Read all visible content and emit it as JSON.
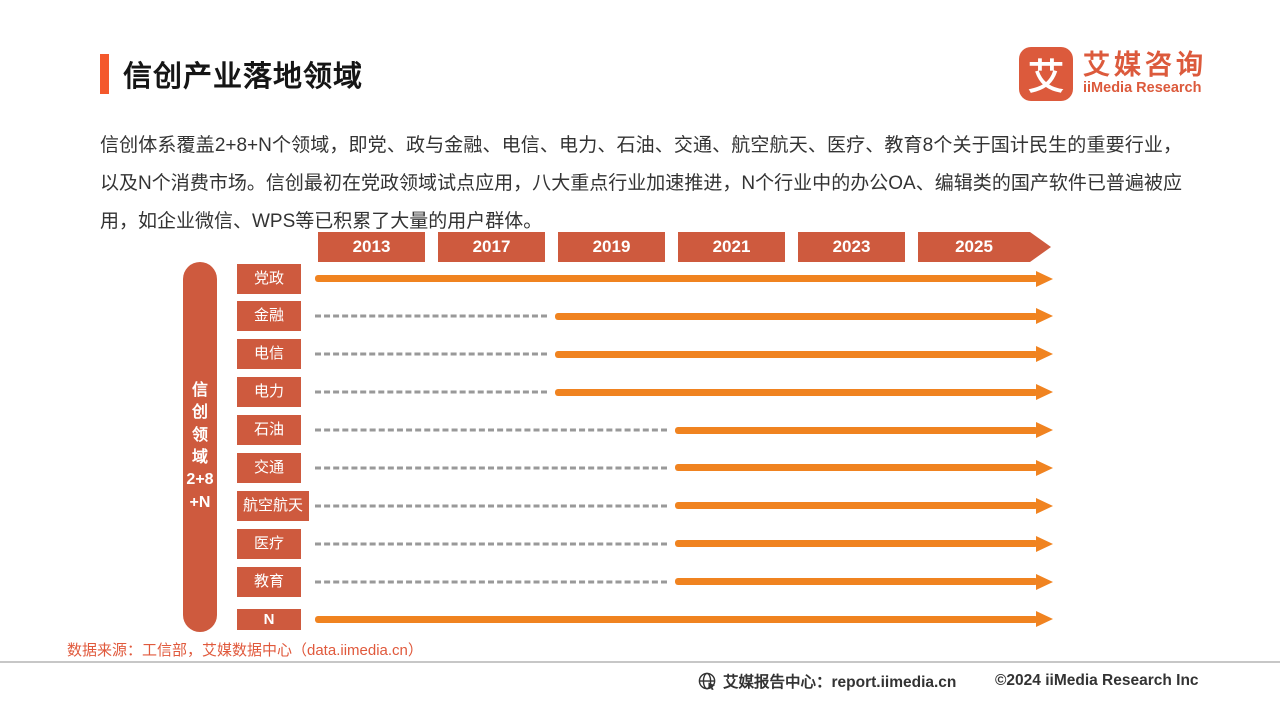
{
  "header": {
    "title": "信创产业落地领域"
  },
  "logo": {
    "mark_char": "艾",
    "name_cn": "艾媒咨询",
    "name_en": "iiMedia Research",
    "color": "#dc5a3c"
  },
  "intro_text": "信创体系覆盖2+8+N个领域，即党、政与金融、电信、电力、石油、交通、航空航天、医疗、教育8个关于国计民生的重要行业，以及N个消费市场。信创最初在党政领域试点应用，八大重点行业加速推进，N个行业中的办公OA、编辑类的国产软件已普遍被应用，如企业微信、WPS等已积累了大量的用户群体。",
  "chart_data": {
    "type": "bar",
    "subtype": "horizontal-timeline-gantt",
    "title": "信创产业落地领域",
    "x_tick_years": [
      "2013",
      "2017",
      "2019",
      "2021",
      "2023",
      "2025"
    ],
    "x_axis_range": [
      "2013",
      "2025+"
    ],
    "y_axis_label": "信创领域2+8+N",
    "y_axis_label_lines": [
      "信",
      "创",
      "领",
      "域",
      "2+8",
      "+N"
    ],
    "categories": [
      "党政",
      "金融",
      "电信",
      "电力",
      "石油",
      "交通",
      "航空航天",
      "医疗",
      "教育",
      "N"
    ],
    "rows": [
      {
        "label": "党政",
        "solid_from_year": "2013",
        "dashed_before": false
      },
      {
        "label": "金融",
        "solid_from_year": "2019",
        "dashed_before": true
      },
      {
        "label": "电信",
        "solid_from_year": "2019",
        "dashed_before": true
      },
      {
        "label": "电力",
        "solid_from_year": "2019",
        "dashed_before": true
      },
      {
        "label": "石油",
        "solid_from_year": "2021",
        "dashed_before": true
      },
      {
        "label": "交通",
        "solid_from_year": "2021",
        "dashed_before": true
      },
      {
        "label": "航空航天",
        "solid_from_year": "2021",
        "dashed_before": true
      },
      {
        "label": "医疗",
        "solid_from_year": "2021",
        "dashed_before": true
      },
      {
        "label": "教育",
        "solid_from_year": "2021",
        "dashed_before": true
      },
      {
        "label": "N",
        "solid_from_year": "2013",
        "dashed_before": false
      }
    ],
    "legend": "none",
    "grid": "off",
    "colors": {
      "year_box": "#ce5a3e",
      "label_box": "#ce5a3e",
      "solid_arrow": "#f08320",
      "dashed_line": "#999999"
    }
  },
  "source_text": "数据来源：工信部，艾媒数据中心（data.iimedia.cn）",
  "footer": {
    "center_text": "艾媒报告中心：report.iimedia.cn",
    "copyright": "©2024  iiMedia Research Inc"
  },
  "colors": {
    "accent_bar": "#f4582c",
    "title_text": "#151515",
    "body_text": "#333333",
    "source_text": "#e0593c",
    "footer_text": "#333333"
  }
}
